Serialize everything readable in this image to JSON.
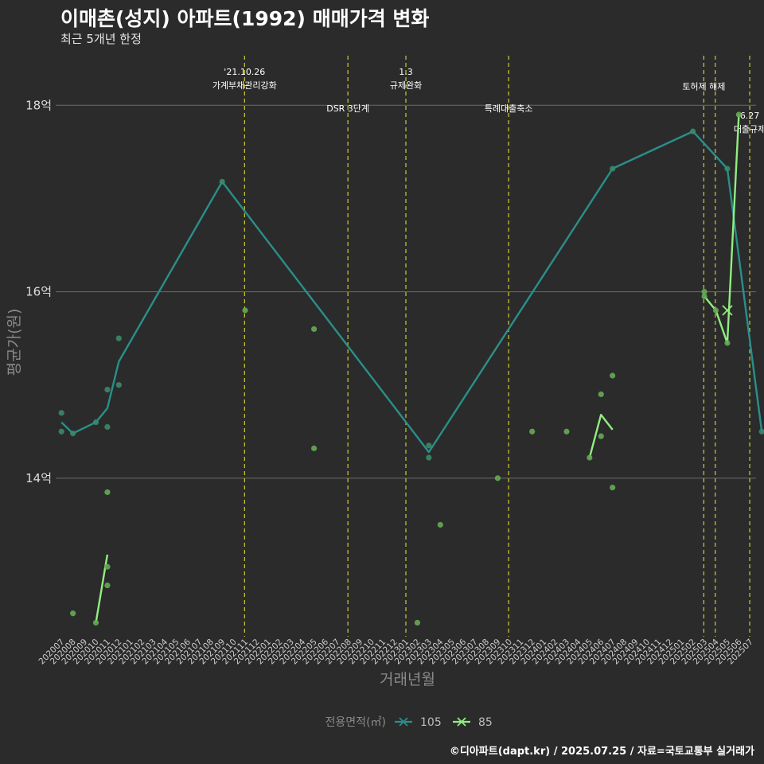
{
  "title": "이매촌(성지) 아파트(1992) 매매가격 변화",
  "subtitle": "최근 5개년 한정",
  "caption": "©디아파트(dapt.kr) / 2025.07.25 / 자료=국토교통부 실거래가",
  "colors": {
    "background": "#2b2b2b",
    "grid": "#6a6a6a",
    "event_line": "#cccc33",
    "series_105": "#2a8f8a",
    "series_85": "#90ee80",
    "points_105": "#3a8a6a",
    "points_85": "#66aa55"
  },
  "chart_data": {
    "type": "line",
    "xlabel": "거래년월",
    "ylabel": "평균가(원)",
    "categories": [
      "202007",
      "202008",
      "202009",
      "202010",
      "202011",
      "202012",
      "202101",
      "202102",
      "202103",
      "202104",
      "202105",
      "202106",
      "202107",
      "202108",
      "202109",
      "202110",
      "202111",
      "202112",
      "202201",
      "202202",
      "202203",
      "202204",
      "202205",
      "202206",
      "202207",
      "202208",
      "202209",
      "202210",
      "202211",
      "202212",
      "202301",
      "202302",
      "202303",
      "202304",
      "202305",
      "202306",
      "202307",
      "202308",
      "202309",
      "202310",
      "202311",
      "202312",
      "202401",
      "202402",
      "202403",
      "202404",
      "202405",
      "202406",
      "202407",
      "202408",
      "202409",
      "202410",
      "202411",
      "202412",
      "202501",
      "202502",
      "202503",
      "202504",
      "202505",
      "202506",
      "202507"
    ],
    "y_ticks": [
      {
        "value": 14,
        "label": "14억"
      },
      {
        "value": 16,
        "label": "16억"
      },
      {
        "value": 18,
        "label": "18억"
      }
    ],
    "ylim": [
      12.3,
      18.6
    ],
    "events": [
      {
        "x": 15.95,
        "lines": [
          "'21.10.26",
          "가계부채관리강화"
        ],
        "label_row": 1
      },
      {
        "x": 24.95,
        "lines": [
          "DSR 3단계"
        ],
        "label_row": 2
      },
      {
        "x": 30.0,
        "lines": [
          "1.3",
          "규제완화"
        ],
        "label_row": 1
      },
      {
        "x": 38.95,
        "lines": [
          "특례대출축소"
        ],
        "label_row": 2
      },
      {
        "x": 55.95,
        "lines": [
          "토허제 해제"
        ],
        "label_row": 1.4
      },
      {
        "x": 56.95,
        "lines": [],
        "label_row": 0
      },
      {
        "x": 59.95,
        "lines": [
          "6.27",
          "대출규제"
        ],
        "label_row": 2.2
      }
    ],
    "series": [
      {
        "name": "105",
        "color": "#2a8f8a",
        "line": [
          [
            0,
            14.6
          ],
          [
            1,
            14.48
          ],
          [
            3,
            14.6
          ],
          [
            4,
            14.75
          ],
          [
            5,
            15.25
          ],
          [
            14,
            17.18
          ],
          [
            32,
            14.28
          ],
          [
            48,
            17.32
          ],
          [
            55,
            17.72
          ],
          [
            58,
            17.32
          ],
          [
            61,
            14.5
          ]
        ],
        "points": [
          [
            0,
            14.5
          ],
          [
            0,
            14.7
          ],
          [
            1,
            14.48
          ],
          [
            3,
            14.6
          ],
          [
            4,
            14.55
          ],
          [
            4,
            14.95
          ],
          [
            5,
            15.0
          ],
          [
            5,
            15.5
          ],
          [
            14,
            17.18
          ],
          [
            32,
            14.22
          ],
          [
            32,
            14.35
          ],
          [
            48,
            17.32
          ],
          [
            55,
            17.72
          ],
          [
            58,
            17.32
          ],
          [
            61,
            14.5
          ]
        ]
      },
      {
        "name": "85",
        "color": "#90ee80",
        "segments": [
          [
            [
              3,
              12.45
            ],
            [
              4,
              13.18
            ]
          ],
          [
            [
              46,
              14.22
            ],
            [
              47,
              14.68
            ],
            [
              48,
              14.52
            ]
          ],
          [
            [
              56,
              15.95
            ],
            [
              57,
              15.8
            ],
            [
              58,
              15.45
            ],
            [
              59,
              17.9
            ]
          ]
        ],
        "points": [
          [
            1,
            12.55
          ],
          [
            3,
            12.45
          ],
          [
            4,
            12.85
          ],
          [
            4,
            13.05
          ],
          [
            4,
            13.85
          ],
          [
            16,
            15.8
          ],
          [
            22,
            15.6
          ],
          [
            22,
            14.32
          ],
          [
            31,
            12.45
          ],
          [
            33,
            13.5
          ],
          [
            38,
            14.0
          ],
          [
            41,
            14.5
          ],
          [
            44,
            14.5
          ],
          [
            46,
            14.22
          ],
          [
            47,
            14.45
          ],
          [
            47,
            14.9
          ],
          [
            48,
            15.1
          ],
          [
            48,
            13.9
          ],
          [
            56,
            15.95
          ],
          [
            56,
            16.0
          ],
          [
            57,
            15.8
          ],
          [
            58,
            15.45
          ],
          [
            59,
            17.9
          ]
        ],
        "cross_marker": [
          58,
          15.8
        ]
      }
    ],
    "legend": {
      "title": "전용면적(㎡)",
      "entries": [
        "105",
        "85"
      ]
    }
  }
}
